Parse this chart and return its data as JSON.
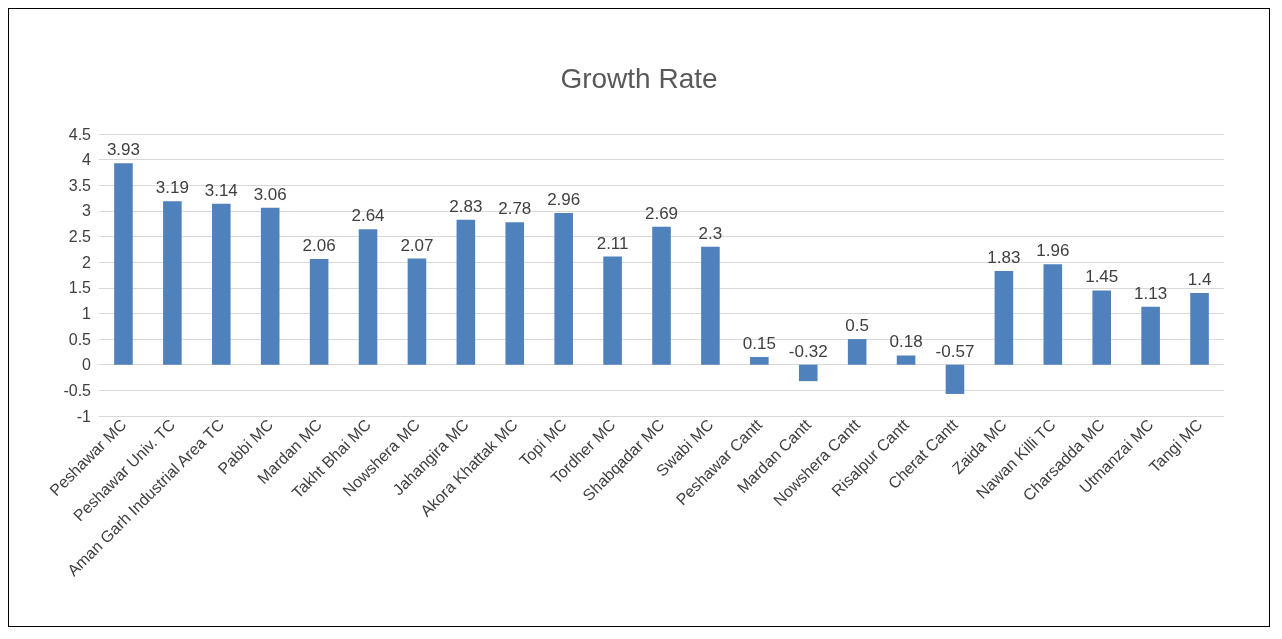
{
  "chart_data": {
    "type": "bar",
    "title": "Growth Rate",
    "categories": [
      "Peshawar MC",
      "Peshawar Univ. TC",
      "Aman Garh Industrial Area TC",
      "Pabbi MC",
      "Mardan MC",
      "Takht Bhai MC",
      "Nowshera MC",
      "Jahangira MC",
      "Akora Khattak MC",
      "Topi MC",
      "Tordher MC",
      "Shabqadar MC",
      "Swabi MC",
      "Peshawar Cantt",
      "Mardan Cantt",
      "Nowshera Cantt",
      "Risalpur Cantt",
      "Cherat Cantt",
      "Zaida MC",
      "Nawan Killi TC",
      "Charsadda MC",
      "Utmanzai MC",
      "Tangi MC"
    ],
    "values": [
      3.93,
      3.19,
      3.14,
      3.06,
      2.06,
      2.64,
      2.07,
      2.83,
      2.78,
      2.96,
      2.11,
      2.69,
      2.3,
      0.15,
      -0.32,
      0.5,
      0.18,
      -0.57,
      1.83,
      1.96,
      1.45,
      1.13,
      1.4
    ],
    "color": "#4f81bd",
    "ylim": [
      -1,
      4.5
    ],
    "yticks": [
      -1,
      -0.5,
      0,
      0.5,
      1,
      1.5,
      2,
      2.5,
      3,
      3.5,
      4,
      4.5
    ],
    "grid": "y",
    "data_labels": true
  }
}
